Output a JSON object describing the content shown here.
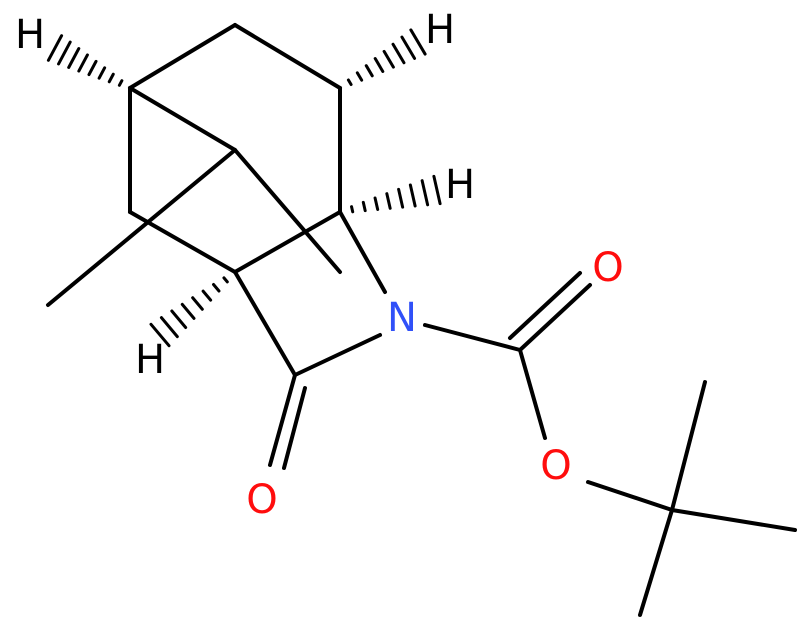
{
  "atoms": [
    {
      "label": "H"
    },
    {
      "label": "H"
    },
    {
      "label": "H"
    },
    {
      "label": "H"
    },
    {
      "label": "N"
    },
    {
      "label": "O"
    },
    {
      "label": "O"
    },
    {
      "label": "O"
    }
  ]
}
